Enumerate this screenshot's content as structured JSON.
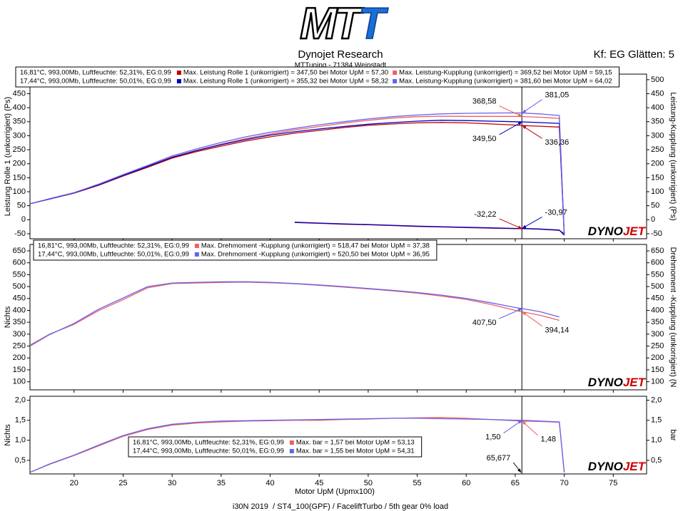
{
  "header": {
    "logo": [
      "MT",
      "T"
    ],
    "title": "Dynojet Research",
    "subtitle": "MTTuning - 71384 Weinstadt",
    "smoothing": "Kf: EG Glätten: 5"
  },
  "footer": "i30N 2019  / ST4_100(GPF) / FaceliftTurbo / 5th gear 0% load",
  "watermark": [
    "DYNO",
    "JET"
  ],
  "chart_data": [
    {
      "type": "line",
      "ylabel": "Leistung Rolle 1 (unkorrigiert) (Ps)",
      "y2label": "Leistung-Kupplung (unkorrigiert) (Ps)",
      "xlim": [
        15.5,
        78.4
      ],
      "ylim": [
        -68,
        520
      ],
      "y2lim": [
        -68,
        520
      ],
      "yticks": [
        -50,
        0,
        50,
        100,
        150,
        200,
        250,
        300,
        350,
        400,
        450
      ],
      "y2ticks": [
        -50,
        0,
        50,
        100,
        150,
        200,
        250,
        300,
        350,
        400,
        450,
        500
      ],
      "x": [
        15.5,
        17.5,
        20,
        22.5,
        25,
        27.5,
        30,
        32.5,
        35,
        37.5,
        40,
        42.5,
        45,
        47.5,
        50,
        52.5,
        55,
        57.5,
        60,
        62.5,
        65,
        65.7,
        67.5,
        69.5,
        70
      ],
      "runs": [
        {
          "conditions": "16,81°C, 993,00Mb, Luftfeuchte: 52,31%, EG:0,99",
          "series": [
            {
              "name": "Max. Leistung Rolle 1 (unkorrigiert) = 347,50 bei Motor UpM = 57,30",
              "color": "#c00000",
              "axis": "y",
              "values": [
                57,
                74,
                95,
                123,
                156,
                187,
                220,
                243,
                263,
                281,
                296,
                309,
                319,
                329,
                337,
                342,
                346,
                347.5,
                346,
                342,
                338,
                336.4,
                334,
                331,
                -50
              ]
            },
            {
              "name": "Max. Leistung-Kupplung (unkorrigiert) = 369,52 bei Motor UpM = 59,15",
              "color": "#f06060",
              "axis": "y2",
              "values": [
                57,
                74,
                96,
                125,
                158,
                191,
                224,
                248,
                270,
                290,
                306,
                321,
                333,
                345,
                355,
                363,
                368,
                369.5,
                369,
                369,
                369,
                368.6,
                366,
                362,
                -50
              ]
            },
            {
              "color": "#c00000",
              "axis": "y",
              "values": [
                null,
                null,
                null,
                null,
                null,
                null,
                null,
                null,
                null,
                null,
                null,
                -10,
                -13,
                -16,
                -18,
                -21,
                -24,
                -26,
                -28,
                -30,
                -32,
                -32.2,
                -34,
                -38,
                -50
              ]
            }
          ]
        },
        {
          "conditions": "17,44°C, 993,00Mb, Luftfeuchte: 50,01%, EG:0,99",
          "series": [
            {
              "name": "Max. Leistung Rolle 1 (unkorrigiert) = 355,32 bei Motor UpM = 58,32",
              "color": "#0000c0",
              "axis": "y",
              "values": [
                57,
                74,
                96,
                125,
                158,
                190,
                223,
                247,
                268,
                286,
                302,
                314,
                324,
                333,
                341,
                347,
                352,
                355.3,
                354,
                352,
                350,
                349.5,
                347,
                344,
                -55
              ]
            },
            {
              "name": "Max. Leistung-Kupplung (unkorrigiert) = 381,60 bei Motor UpM = 64,02",
              "color": "#6464f0",
              "axis": "y2",
              "values": [
                57,
                75,
                97,
                127,
                161,
                194,
                228,
                253,
                276,
                296,
                312,
                326,
                339,
                350,
                360,
                368,
                374,
                378,
                380,
                381,
                381.5,
                381.05,
                378,
                372,
                -55
              ]
            },
            {
              "color": "#0000c0",
              "axis": "y",
              "values": [
                null,
                null,
                null,
                null,
                null,
                null,
                null,
                null,
                null,
                null,
                null,
                -9,
                -12,
                -15,
                -17,
                -20,
                -23,
                -25,
                -27,
                -29,
                -31,
                -30.97,
                -33,
                -37,
                -55
              ]
            }
          ]
        }
      ],
      "annotations": [
        {
          "label": "368,58",
          "value": 368.58,
          "x": 65.7,
          "axis": "y2",
          "color": "#f06060"
        },
        {
          "label": "381,05",
          "value": 381.05,
          "x": 65.7,
          "axis": "y2",
          "color": "#6464f0"
        },
        {
          "label": "349,50",
          "value": 349.5,
          "x": 65.7,
          "axis": "y",
          "color": "#0000c0"
        },
        {
          "label": "336,36",
          "value": 336.36,
          "x": 65.7,
          "axis": "y",
          "color": "#c00000"
        },
        {
          "label": "-32,22",
          "value": -32.22,
          "x": 65.7,
          "axis": "y",
          "color": "#c00000"
        },
        {
          "label": "-30,97",
          "value": -30.97,
          "x": 65.7,
          "axis": "y",
          "color": "#0000c0"
        }
      ]
    },
    {
      "type": "line",
      "ylabel": "Nichts",
      "y2label": "Drehmoment -Kupplung (unkorrigiert) (N",
      "xlim": [
        15.5,
        78.4
      ],
      "ylim": [
        66,
        677
      ],
      "y2lim": [
        66,
        677
      ],
      "yticks": [
        100,
        150,
        200,
        250,
        300,
        350,
        400,
        450,
        500,
        550,
        600,
        650
      ],
      "y2ticks": [
        100,
        150,
        200,
        250,
        300,
        350,
        400,
        450,
        500,
        550,
        600,
        650
      ],
      "x": [
        15.5,
        17.5,
        20,
        22.5,
        25,
        27.5,
        30,
        32.5,
        35,
        37.5,
        40,
        42.5,
        45,
        47.5,
        50,
        52.5,
        55,
        57.5,
        60,
        62.5,
        65,
        65.7,
        67.5,
        69.5
      ],
      "runs": [
        {
          "conditions": "16,81°C, 993,00Mb, Luftfeuchte: 52,31%, EG:0,99",
          "series": [
            {
              "name": "Max. Drehmoment -Kupplung (unkorrigiert) = 518,47 bei Motor UpM = 37,38",
              "color": "#f06060",
              "axis": "y2",
              "values": [
                254,
                300,
                341,
                399,
                445,
                495,
                513,
                515,
                517,
                518.5,
                516,
                512,
                505,
                498,
                490,
                482,
                472,
                460,
                446,
                425,
                400,
                394.1,
                380,
                358
              ]
            }
          ]
        },
        {
          "conditions": "17,44°C, 993,00Mb, Luftfeuchte: 50,01%, EG:0,99",
          "series": [
            {
              "name": "Max. Drehmoment -Kupplung (unkorrigiert) = 520,50 bei Motor UpM = 36,95",
              "color": "#6464f0",
              "axis": "y2",
              "values": [
                250,
                298,
                345,
                405,
                452,
                500,
                515,
                518,
                520,
                520.5,
                518,
                513,
                507,
                500,
                492,
                484,
                475,
                464,
                450,
                432,
                412,
                407.5,
                395,
                372
              ]
            }
          ]
        }
      ],
      "annotations": [
        {
          "label": "407,50",
          "value": 407.5,
          "x": 65.7,
          "axis": "y2",
          "color": "#6464f0"
        },
        {
          "label": "394,14",
          "value": 394.14,
          "x": 65.7,
          "axis": "y2",
          "color": "#f06060"
        }
      ]
    },
    {
      "type": "line",
      "ylabel": "Nichts",
      "y2label": "bar",
      "xlabel": "Motor UpM (Upmx100)",
      "xlim": [
        15.5,
        78.4
      ],
      "ylim": [
        0.16,
        2.1
      ],
      "y2lim": [
        0.16,
        2.1
      ],
      "xticks": [
        20,
        25,
        30,
        35,
        40,
        45,
        50,
        55,
        60,
        65,
        70,
        75
      ],
      "yticks": [
        {
          "value": 0.5,
          "label": "0,5"
        },
        {
          "value": 1,
          "label": "1,0"
        },
        {
          "value": 1.5,
          "label": "1,5"
        },
        {
          "value": 2,
          "label": "2,0"
        }
      ],
      "y2ticks": [
        {
          "value": 0.5,
          "label": "0,5"
        },
        {
          "value": 1,
          "label": "1,0"
        },
        {
          "value": 1.5,
          "label": "1,5"
        },
        {
          "value": 2,
          "label": "2,0"
        }
      ],
      "x": [
        15.5,
        17.5,
        20,
        22.5,
        25,
        27.5,
        30,
        32.5,
        35,
        37.5,
        40,
        42.5,
        45,
        47.5,
        50,
        52.5,
        55,
        57.5,
        60,
        62.5,
        65,
        65.7,
        67.5,
        69.5,
        70
      ],
      "runs": [
        {
          "conditions": "16,81°C, 993,00Mb, Luftfeuchte: 52,31%, EG:0,99",
          "series": [
            {
              "name": "Max. bar = 1,57 bei Motor UpM = 53,13",
              "color": "#f06060",
              "axis": "y2",
              "values": [
                0.2,
                0.4,
                0.62,
                0.86,
                1.1,
                1.27,
                1.38,
                1.43,
                1.46,
                1.48,
                1.49,
                1.5,
                1.5,
                1.52,
                1.53,
                1.55,
                1.56,
                1.57,
                1.55,
                1.52,
                1.49,
                1.48,
                1.47,
                1.45,
                0.2
              ]
            }
          ]
        },
        {
          "conditions": "17,44°C, 993,00Mb, Luftfeuchte: 50,01%, EG:0,99",
          "series": [
            {
              "name": "Max. bar = 1,55 bei Motor UpM = 54,31",
              "color": "#6464f0",
              "axis": "y2",
              "values": [
                0.2,
                0.41,
                0.63,
                0.88,
                1.12,
                1.29,
                1.4,
                1.45,
                1.48,
                1.49,
                1.5,
                1.51,
                1.52,
                1.53,
                1.54,
                1.55,
                1.55,
                1.54,
                1.53,
                1.52,
                1.5,
                1.5,
                1.48,
                1.46,
                0.2
              ]
            }
          ]
        }
      ],
      "annotations": [
        {
          "label": "1,50",
          "value": 1.5,
          "x": 65.7,
          "axis": "y2",
          "color": "#6464f0"
        },
        {
          "label": "1,48",
          "value": 1.48,
          "x": 65.7,
          "axis": "y2",
          "color": "#f06060"
        }
      ],
      "cursor": {
        "value": 65.677,
        "label": "65,677"
      }
    }
  ]
}
